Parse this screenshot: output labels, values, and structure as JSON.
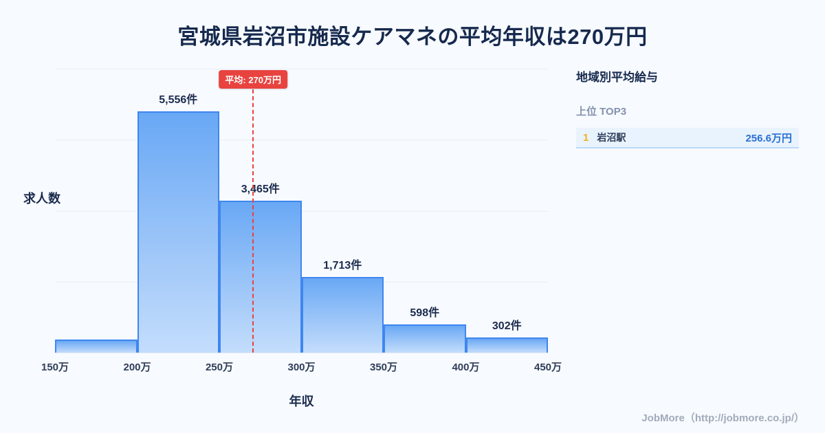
{
  "page": {
    "title": "宮城県岩沼市施設ケアマネの平均年収は270万円",
    "footer": "JobMore（http://jobmore.co.jp/）",
    "background": "#f7faff"
  },
  "chart_data": {
    "type": "bar",
    "title": "宮城県岩沼市施設ケアマネの平均年収は270万円",
    "xlabel": "年収",
    "ylabel": "求人数",
    "x_ticks": [
      "150万",
      "200万",
      "250万",
      "300万",
      "350万",
      "400万",
      "450万"
    ],
    "tick_pct": [
      0,
      16.667,
      33.333,
      50,
      66.667,
      83.333,
      100
    ],
    "bins": [
      {
        "range": "150万-200万",
        "count": null,
        "label": ""
      },
      {
        "range": "200万-250万",
        "count": 5556,
        "label": "5,556件"
      },
      {
        "range": "250万-300万",
        "count": 3465,
        "label": "3,465件"
      },
      {
        "range": "300万-350万",
        "count": 1713,
        "label": "1,713件"
      },
      {
        "range": "350万-400万",
        "count": 598,
        "label": "598件"
      },
      {
        "range": "400万-450万",
        "count": 302,
        "label": "302件"
      }
    ],
    "bar_height_pct": [
      4.6,
      85,
      53.5,
      26.6,
      9.9,
      5.3
    ],
    "average_line": {
      "label": "平均: 270万円",
      "x_value": "270万",
      "position_pct": 40.2,
      "color": "#e8433f"
    },
    "grid": true,
    "legend": false,
    "colors": {
      "bar_top": "#69a8f5",
      "bar_bottom": "#c3ddfc",
      "bar_border": "#3f86ef",
      "value_text": "#1b2b4d"
    }
  },
  "side_panel": {
    "heading": "地域別平均給与",
    "subheading": "上位 TOP3",
    "rows": [
      {
        "rank": "1",
        "name": "岩沼駅",
        "value": "256.6万円"
      }
    ]
  }
}
